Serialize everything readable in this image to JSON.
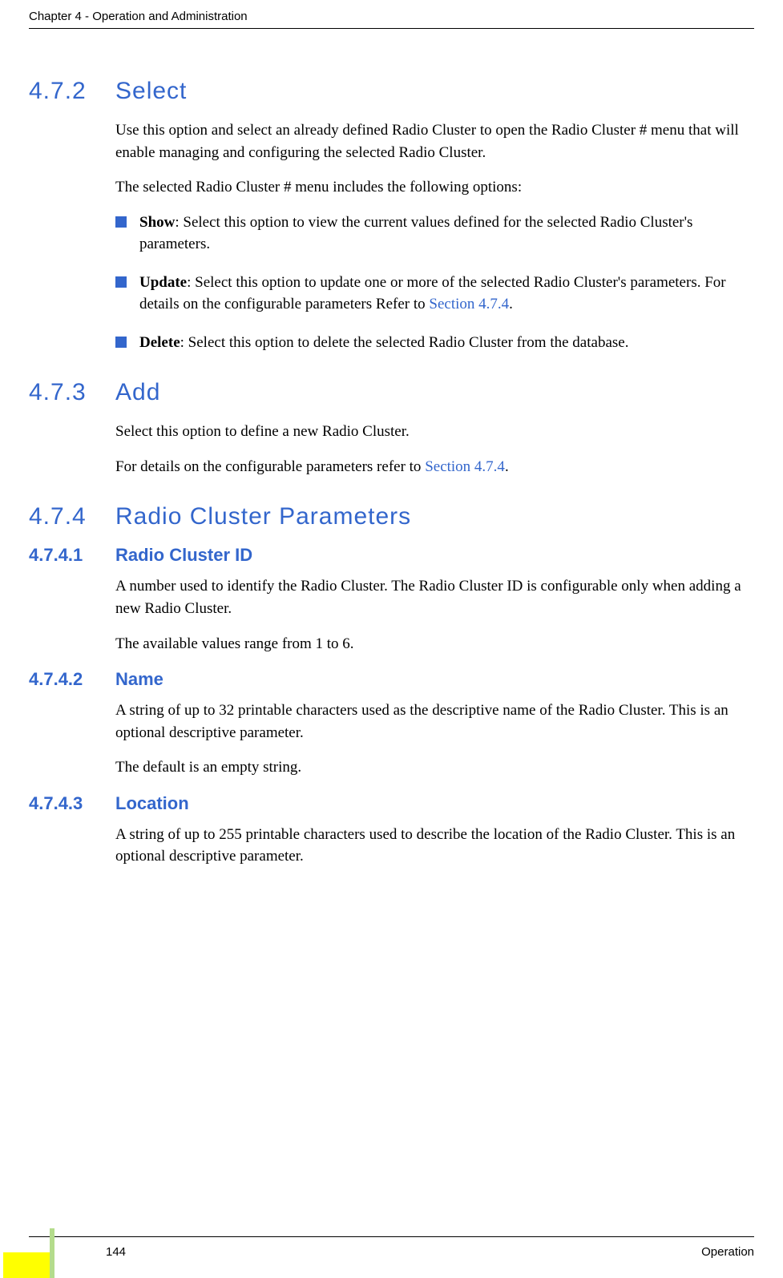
{
  "header": {
    "chapter": "Chapter 4 - Operation and Administration"
  },
  "sections": {
    "s472": {
      "num": "4.7.2",
      "title": "Select",
      "para1": "Use this option and select an already defined Radio Cluster to open the Radio Cluster # menu that will enable managing and configuring the selected Radio Cluster.",
      "para2": "The selected Radio Cluster # menu includes the following options:",
      "bullets": {
        "b1": {
          "bold": "Show",
          "rest": ": Select this option to view the current values defined for the selected Radio Cluster's parameters."
        },
        "b2": {
          "bold": "Update",
          "rest1": ": Select this option to update one or more of the selected Radio Cluster's parameters. For details on the configurable parameters Refer to ",
          "link": "Section 4.7.4",
          "rest2": "."
        },
        "b3": {
          "bold": "Delete",
          "rest": ": Select this option to delete the selected Radio Cluster from the database."
        }
      }
    },
    "s473": {
      "num": "4.7.3",
      "title": "Add",
      "para1": "Select this option to define a new Radio Cluster.",
      "para2a": "For details on the configurable parameters refer to ",
      "para2link": "Section 4.7.4",
      "para2b": "."
    },
    "s474": {
      "num": "4.7.4",
      "title": "Radio Cluster Parameters",
      "sub1": {
        "num": "4.7.4.1",
        "title": "Radio Cluster ID",
        "para1": "A number used to identify the Radio Cluster. The Radio Cluster ID is configurable only when adding a new Radio Cluster.",
        "para2": "The available values range from 1 to 6."
      },
      "sub2": {
        "num": "4.7.4.2",
        "title": "Name",
        "para1": "A string of up to 32 printable characters used as the descriptive name of the Radio Cluster. This is an optional descriptive parameter.",
        "para2": "The default is an empty string."
      },
      "sub3": {
        "num": "4.7.4.3",
        "title": "Location",
        "para1": "A string of up to 255 printable characters used to describe the location of the Radio Cluster. This is an optional descriptive parameter."
      }
    }
  },
  "footer": {
    "pagenum": "144",
    "label": "Operation"
  }
}
